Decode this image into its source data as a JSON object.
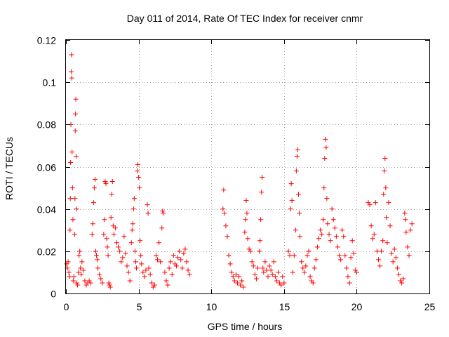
{
  "chart_data": {
    "type": "scatter",
    "title": "Day 011 of 2014, Rate Of TEC Index for receiver cnmr",
    "xlabel": "GPS time / hours",
    "ylabel": "ROTI / TECUs",
    "xlim": [
      0,
      25
    ],
    "ylim": [
      0,
      0.12
    ],
    "xticks": [
      0,
      5,
      10,
      15,
      20,
      25
    ],
    "xtick_labels": [
      "0",
      "5",
      "10",
      "15",
      "20",
      "25"
    ],
    "yticks": [
      0,
      0.02,
      0.04,
      0.06,
      0.08,
      0.1,
      0.12
    ],
    "ytick_labels": [
      "0",
      "0.02",
      "0.04",
      "0.06",
      "0.08",
      "0.1",
      "0.12"
    ],
    "grid": true,
    "marker": "+",
    "color": "#ff0000",
    "series": [
      {
        "name": "ROTI",
        "points": [
          [
            0.05,
            0.014
          ],
          [
            0.1,
            0.012
          ],
          [
            0.15,
            0.015
          ],
          [
            0.2,
            0.01
          ],
          [
            0.25,
            0.008
          ],
          [
            0.28,
            0.03
          ],
          [
            0.3,
            0.045
          ],
          [
            0.32,
            0.062
          ],
          [
            0.34,
            0.08
          ],
          [
            0.36,
            0.105
          ],
          [
            0.38,
            0.113
          ],
          [
            0.4,
            0.102
          ],
          [
            0.42,
            0.067
          ],
          [
            0.45,
            0.05
          ],
          [
            0.48,
            0.035
          ],
          [
            0.5,
            0.006
          ],
          [
            0.55,
            0.008
          ],
          [
            0.6,
            0.028
          ],
          [
            0.62,
            0.045
          ],
          [
            0.64,
            0.077
          ],
          [
            0.66,
            0.085
          ],
          [
            0.68,
            0.092
          ],
          [
            0.7,
            0.065
          ],
          [
            0.72,
            0.04
          ],
          [
            0.75,
            0.005
          ],
          [
            0.8,
            0.004
          ],
          [
            0.85,
            0.01
          ],
          [
            0.9,
            0.018
          ],
          [
            0.95,
            0.02
          ],
          [
            1.0,
            0.012
          ],
          [
            1.05,
            0.009
          ],
          [
            1.1,
            0.015
          ],
          [
            1.2,
            0.011
          ],
          [
            1.3,
            0.006
          ],
          [
            1.4,
            0.004
          ],
          [
            1.5,
            0.005
          ],
          [
            1.6,
            0.006
          ],
          [
            1.7,
            0.005
          ],
          [
            1.8,
            0.028
          ],
          [
            1.85,
            0.033
          ],
          [
            1.9,
            0.043
          ],
          [
            1.95,
            0.05
          ],
          [
            2.0,
            0.054
          ],
          [
            2.05,
            0.02
          ],
          [
            2.1,
            0.018
          ],
          [
            2.15,
            0.016
          ],
          [
            2.2,
            0.012
          ],
          [
            2.3,
            0.009
          ],
          [
            2.4,
            0.007
          ],
          [
            2.5,
            0.005
          ],
          [
            2.6,
            0.028
          ],
          [
            2.65,
            0.035
          ],
          [
            2.7,
            0.053
          ],
          [
            2.75,
            0.052
          ],
          [
            2.8,
            0.026
          ],
          [
            2.85,
            0.022
          ],
          [
            2.9,
            0.018
          ],
          [
            2.95,
            0.005
          ],
          [
            3.0,
            0.004
          ],
          [
            3.05,
            0.003
          ],
          [
            3.1,
            0.036
          ],
          [
            3.15,
            0.047
          ],
          [
            3.2,
            0.053
          ],
          [
            3.25,
            0.032
          ],
          [
            3.3,
            0.028
          ],
          [
            3.4,
            0.031
          ],
          [
            3.5,
            0.024
          ],
          [
            3.6,
            0.022
          ],
          [
            3.7,
            0.02
          ],
          [
            3.8,
            0.015
          ],
          [
            3.9,
            0.017
          ],
          [
            4.0,
            0.027
          ],
          [
            4.1,
            0.019
          ],
          [
            4.2,
            0.013
          ],
          [
            4.3,
            0.01
          ],
          [
            4.4,
            0.006
          ],
          [
            4.5,
            0.024
          ],
          [
            4.55,
            0.03
          ],
          [
            4.6,
            0.033
          ],
          [
            4.65,
            0.04
          ],
          [
            4.7,
            0.045
          ],
          [
            4.75,
            0.02
          ],
          [
            4.8,
            0.015
          ],
          [
            4.85,
            0.012
          ],
          [
            4.9,
            0.058
          ],
          [
            4.95,
            0.061
          ],
          [
            5.0,
            0.055
          ],
          [
            5.05,
            0.05
          ],
          [
            5.1,
            0.025
          ],
          [
            5.15,
            0.018
          ],
          [
            5.2,
            0.014
          ],
          [
            5.3,
            0.01
          ],
          [
            5.4,
            0.008
          ],
          [
            5.5,
            0.011
          ],
          [
            5.6,
            0.042
          ],
          [
            5.65,
            0.038
          ],
          [
            5.7,
            0.012
          ],
          [
            5.8,
            0.009
          ],
          [
            5.9,
            0.005
          ],
          [
            6.0,
            0.003
          ],
          [
            6.1,
            0.004
          ],
          [
            6.2,
            0.018
          ],
          [
            6.3,
            0.016
          ],
          [
            6.4,
            0.024
          ],
          [
            6.5,
            0.015
          ],
          [
            6.6,
            0.031
          ],
          [
            6.65,
            0.039
          ],
          [
            6.7,
            0.038
          ],
          [
            6.8,
            0.01
          ],
          [
            6.9,
            0.006
          ],
          [
            7.0,
            0.004
          ],
          [
            7.1,
            0.012
          ],
          [
            7.2,
            0.015
          ],
          [
            7.3,
            0.009
          ],
          [
            7.4,
            0.018
          ],
          [
            7.5,
            0.014
          ],
          [
            7.6,
            0.013
          ],
          [
            7.7,
            0.017
          ],
          [
            7.8,
            0.02
          ],
          [
            7.9,
            0.016
          ],
          [
            8.0,
            0.012
          ],
          [
            8.1,
            0.019
          ],
          [
            8.2,
            0.021
          ],
          [
            8.3,
            0.015
          ],
          [
            8.4,
            0.011
          ],
          [
            8.5,
            0.009
          ],
          [
            10.8,
            0.04
          ],
          [
            10.85,
            0.049
          ],
          [
            10.9,
            0.038
          ],
          [
            11.0,
            0.032
          ],
          [
            11.1,
            0.027
          ],
          [
            11.2,
            0.018
          ],
          [
            11.3,
            0.014
          ],
          [
            11.4,
            0.01
          ],
          [
            11.5,
            0.008
          ],
          [
            11.6,
            0.006
          ],
          [
            11.7,
            0.009
          ],
          [
            11.8,
            0.005
          ],
          [
            11.9,
            0.008
          ],
          [
            12.0,
            0.004
          ],
          [
            12.1,
            0.006
          ],
          [
            12.2,
            0.003
          ],
          [
            12.3,
            0.029
          ],
          [
            12.35,
            0.035
          ],
          [
            12.4,
            0.044
          ],
          [
            12.45,
            0.038
          ],
          [
            12.5,
            0.026
          ],
          [
            12.6,
            0.021
          ],
          [
            12.7,
            0.02
          ],
          [
            12.8,
            0.015
          ],
          [
            12.9,
            0.013
          ],
          [
            13.0,
            0.009
          ],
          [
            13.1,
            0.007
          ],
          [
            13.2,
            0.012
          ],
          [
            13.3,
            0.02
          ],
          [
            13.35,
            0.025
          ],
          [
            13.4,
            0.035
          ],
          [
            13.45,
            0.048
          ],
          [
            13.5,
            0.055
          ],
          [
            13.55,
            0.012
          ],
          [
            13.6,
            0.01
          ],
          [
            13.7,
            0.015
          ],
          [
            13.8,
            0.011
          ],
          [
            13.9,
            0.008
          ],
          [
            14.0,
            0.013
          ],
          [
            14.1,
            0.011
          ],
          [
            14.2,
            0.009
          ],
          [
            14.3,
            0.015
          ],
          [
            14.4,
            0.008
          ],
          [
            14.5,
            0.006
          ],
          [
            14.6,
            0.01
          ],
          [
            14.7,
            0.005
          ],
          [
            14.8,
            0.004
          ],
          [
            14.9,
            0.008
          ],
          [
            15.0,
            0.005
          ],
          [
            15.3,
            0.02
          ],
          [
            15.4,
            0.018
          ],
          [
            15.45,
            0.04
          ],
          [
            15.5,
            0.052
          ],
          [
            15.55,
            0.044
          ],
          [
            15.6,
            0.01
          ],
          [
            15.7,
            0.018
          ],
          [
            15.8,
            0.03
          ],
          [
            15.85,
            0.058
          ],
          [
            15.9,
            0.065
          ],
          [
            15.95,
            0.068
          ],
          [
            16.0,
            0.047
          ],
          [
            16.05,
            0.038
          ],
          [
            16.1,
            0.027
          ],
          [
            16.2,
            0.015
          ],
          [
            16.3,
            0.012
          ],
          [
            16.4,
            0.01
          ],
          [
            16.5,
            0.013
          ],
          [
            16.6,
            0.018
          ],
          [
            16.7,
            0.02
          ],
          [
            16.8,
            0.008
          ],
          [
            16.9,
            0.006
          ],
          [
            17.0,
            0.005
          ],
          [
            17.1,
            0.012
          ],
          [
            17.2,
            0.016
          ],
          [
            17.3,
            0.022
          ],
          [
            17.4,
            0.026
          ],
          [
            17.5,
            0.03
          ],
          [
            17.6,
            0.028
          ],
          [
            17.7,
            0.035
          ],
          [
            17.75,
            0.05
          ],
          [
            17.8,
            0.064
          ],
          [
            17.85,
            0.073
          ],
          [
            17.9,
            0.069
          ],
          [
            17.95,
            0.045
          ],
          [
            18.0,
            0.033
          ],
          [
            18.1,
            0.028
          ],
          [
            18.2,
            0.025
          ],
          [
            18.3,
            0.04
          ],
          [
            18.4,
            0.035
          ],
          [
            18.5,
            0.031
          ],
          [
            18.6,
            0.027
          ],
          [
            18.7,
            0.022
          ],
          [
            18.8,
            0.018
          ],
          [
            18.9,
            0.016
          ],
          [
            19.0,
            0.03
          ],
          [
            19.1,
            0.027
          ],
          [
            19.2,
            0.018
          ],
          [
            19.3,
            0.012
          ],
          [
            19.4,
            0.008
          ],
          [
            19.5,
            0.005
          ],
          [
            19.6,
            0.017
          ],
          [
            19.7,
            0.025
          ],
          [
            19.8,
            0.019
          ],
          [
            19.9,
            0.011
          ],
          [
            20.0,
            0.01
          ],
          [
            20.8,
            0.043
          ],
          [
            20.9,
            0.042
          ],
          [
            21.0,
            0.032
          ],
          [
            21.1,
            0.026
          ],
          [
            21.2,
            0.028
          ],
          [
            21.3,
            0.043
          ],
          [
            21.4,
            0.02
          ],
          [
            21.5,
            0.016
          ],
          [
            21.6,
            0.013
          ],
          [
            21.7,
            0.02
          ],
          [
            21.8,
            0.025
          ],
          [
            21.85,
            0.047
          ],
          [
            21.9,
            0.058
          ],
          [
            21.95,
            0.064
          ],
          [
            22.0,
            0.05
          ],
          [
            22.05,
            0.036
          ],
          [
            22.1,
            0.024
          ],
          [
            22.2,
            0.043
          ],
          [
            22.3,
            0.032
          ],
          [
            22.4,
            0.019
          ],
          [
            22.5,
            0.015
          ],
          [
            22.6,
            0.021
          ],
          [
            22.7,
            0.017
          ],
          [
            22.8,
            0.012
          ],
          [
            22.9,
            0.009
          ],
          [
            23.0,
            0.006
          ],
          [
            23.1,
            0.005
          ],
          [
            23.2,
            0.007
          ],
          [
            23.3,
            0.038
          ],
          [
            23.35,
            0.035
          ],
          [
            23.4,
            0.029
          ],
          [
            23.5,
            0.022
          ],
          [
            23.6,
            0.018
          ],
          [
            23.7,
            0.03
          ],
          [
            23.8,
            0.033
          ]
        ]
      }
    ]
  }
}
